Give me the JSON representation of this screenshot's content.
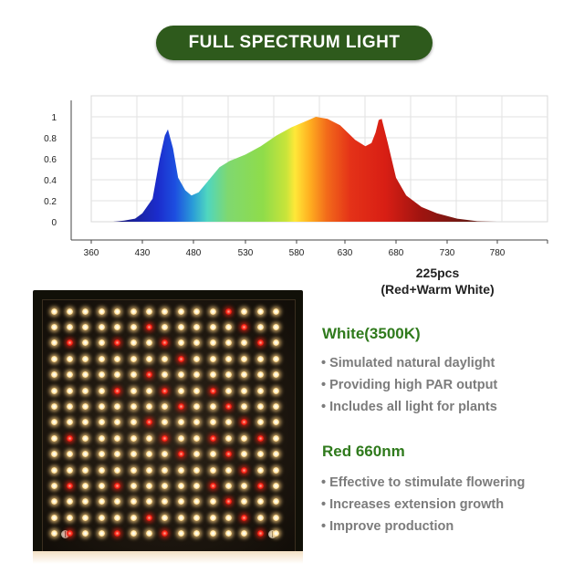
{
  "title": "FULL SPECTRUM LIGHT",
  "chart_data": {
    "type": "area",
    "title": "FULL SPECTRUM LIGHT",
    "xlabel": "",
    "ylabel": "",
    "x_ticks": [
      360,
      430,
      480,
      530,
      580,
      630,
      680,
      730,
      780
    ],
    "y_ticks": [
      "0",
      "0.2",
      "0.4",
      "0.6",
      "0.8",
      "1"
    ],
    "ylim": [
      0,
      1
    ],
    "grid": true,
    "series": [
      {
        "x": [
          390,
          405,
          420,
          430,
          440,
          447,
          452,
          455,
          460,
          465,
          472,
          478,
          485,
          495,
          505,
          515,
          530,
          545,
          560,
          575,
          590,
          600,
          612,
          625,
          640,
          650,
          656,
          660,
          663,
          666,
          672,
          680,
          690,
          705,
          720,
          740,
          760,
          780
        ],
        "values": [
          0,
          0.01,
          0.03,
          0.08,
          0.22,
          0.6,
          0.82,
          0.88,
          0.7,
          0.42,
          0.3,
          0.25,
          0.28,
          0.4,
          0.52,
          0.58,
          0.64,
          0.72,
          0.82,
          0.9,
          0.96,
          1.0,
          0.98,
          0.92,
          0.78,
          0.72,
          0.75,
          0.85,
          0.97,
          0.98,
          0.75,
          0.42,
          0.25,
          0.14,
          0.08,
          0.03,
          0.005,
          0
        ]
      }
    ]
  },
  "panel_caption": [
    "225pcs",
    "(Red+Warm White)"
  ],
  "white": {
    "heading": "White(3500K)",
    "bullets": [
      "Simulated natural daylight",
      "Providing high PAR output",
      "Includes all light for plants"
    ]
  },
  "red": {
    "heading": "Red 660nm",
    "bullets": [
      "Effective to stimulate flowering",
      "Increases extension growth",
      "Improve production"
    ]
  },
  "colors": {
    "title_bg": "#2e5a1c",
    "heading": "#2f7a1c",
    "bullet_text": "#7c7c7c",
    "led_white": "#ffd27a",
    "led_red": "#ff2a1a"
  }
}
